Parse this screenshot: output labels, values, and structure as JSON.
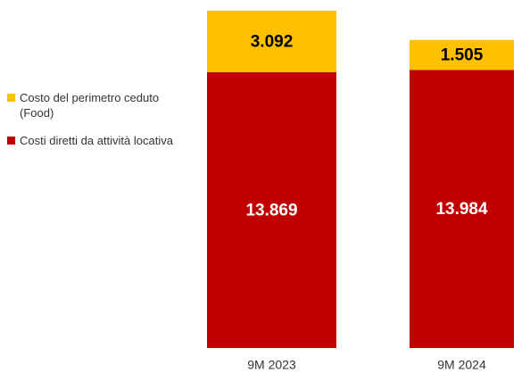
{
  "chart_data": {
    "type": "stacked_bar",
    "categories": [
      "9M 2023",
      "9M 2024"
    ],
    "series": [
      {
        "name": "Costi diretti da attività locativa",
        "color": "#c00000",
        "values": [
          13869,
          13984
        ],
        "value_labels": [
          "13.869",
          "13.984"
        ]
      },
      {
        "name": "Costo del perimetro ceduto (Food)",
        "color": "#ffc000",
        "values": [
          3092,
          1505
        ],
        "value_labels": [
          "3.092",
          "1.505"
        ]
      }
    ],
    "legend": "left"
  }
}
